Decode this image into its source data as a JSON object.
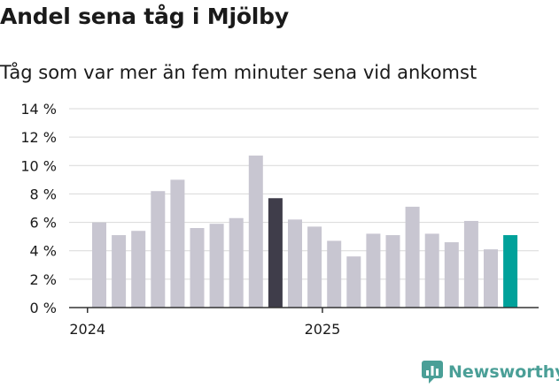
{
  "title": "Andel sena tåg i Mjölby",
  "subtitle": "Tåg som var mer än fem minuter sena vid ankomst",
  "brand": "Newsworthy",
  "colors": {
    "bar": "#c8c6d1",
    "highlight": "#3f3d4a",
    "latest": "#00a19a",
    "grid": "#d9d9d9",
    "axis": "#333333",
    "text": "#1a1a1a",
    "brand": "#4a9f97"
  },
  "chart_data": {
    "type": "bar",
    "title": "Andel sena tåg i Mjölby",
    "subtitle": "Tåg som var mer än fem minuter sena vid ankomst",
    "ylim": [
      0,
      14
    ],
    "yticks": [
      0,
      2,
      4,
      6,
      8,
      10,
      12,
      14
    ],
    "ytick_labels": [
      "0 %",
      "2 %",
      "4 %",
      "6 %",
      "8 %",
      "10 %",
      "12 %",
      "14 %"
    ],
    "xtick_labels": [
      {
        "label": "2024",
        "at_index": -0.6
      },
      {
        "label": "2025",
        "at_index": 11.4
      }
    ],
    "grid": true,
    "values": [
      6.0,
      5.1,
      5.4,
      8.2,
      9.0,
      5.6,
      5.9,
      6.3,
      10.7,
      7.7,
      6.2,
      5.7,
      4.7,
      3.6,
      5.2,
      5.1,
      7.1,
      5.2,
      4.6,
      6.1,
      4.1,
      5.1
    ],
    "highlight_index": 9,
    "latest_index": 21
  }
}
